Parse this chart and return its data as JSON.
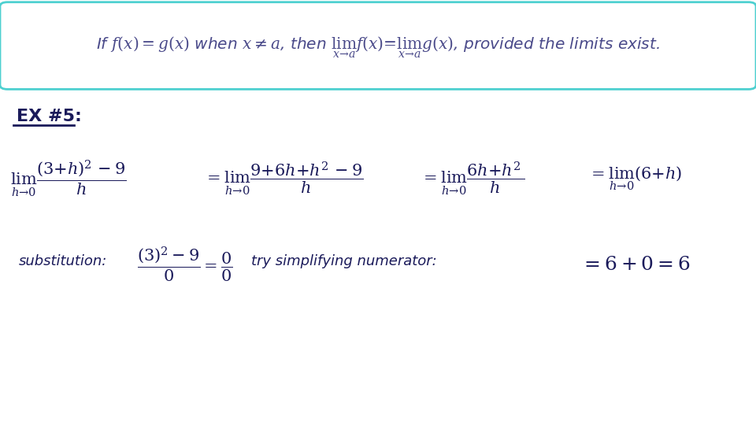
{
  "bg_color": "#ffffff",
  "box_edge_color": "#4dd0d0",
  "box_text_color": "#4a4a8a",
  "main_text_color": "#1a1a5a",
  "fig_width": 9.6,
  "fig_height": 5.4,
  "dpi": 100,
  "theorem_text": "If $f(x) = g(x)$ when $x \\neq a$, then $\\lim_{x \\to a} f(x) = \\lim_{x \\to a} g(x)$, provided the limits exist.",
  "ex_label": "EX #5:",
  "line1_part1": "$\\lim_{h \\to 0} \\dfrac{(3+h)^2 - 9}{h}$",
  "line1_part2": "$= \\lim_{h \\to 0} \\dfrac{9 + 6h + h^2 - 9}{h}$",
  "line1_part3": "$= \\lim_{h \\to 0} \\dfrac{6h + h^2}{h}$",
  "line1_part4": "$= \\lim_{h \\to 0} (6 + h)$",
  "line2_sub": "substitution:",
  "line2_frac": "$\\dfrac{(3)^2 - 9}{0} = \\dfrac{0}{0}$",
  "line2_try": "try simplifying numerator:",
  "line2_result": "$= 6 + 0 = 6$"
}
